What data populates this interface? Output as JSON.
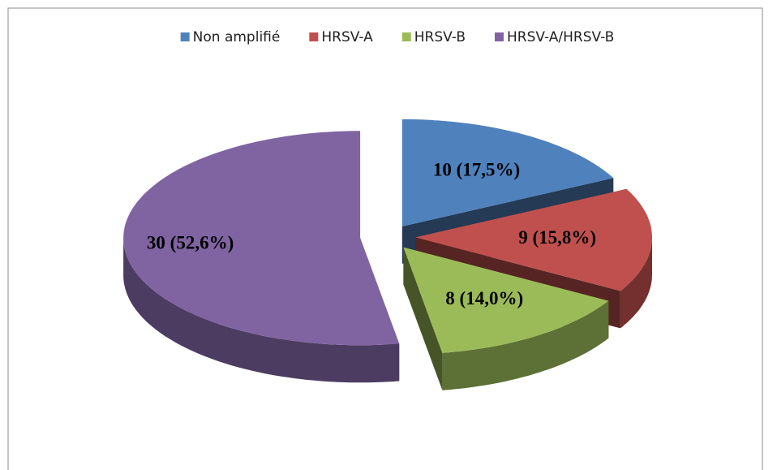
{
  "chart_data": {
    "type": "pie",
    "categories": [
      "Non amplifié",
      "HRSV-A",
      "HRSV-B",
      "HRSV-A/HRSV-B"
    ],
    "values": [
      10,
      9,
      8,
      30
    ],
    "value_labels": [
      "10 (17,5%)",
      "9 (15,8%)",
      "8 (14,0%)",
      "30 (52,6%)"
    ],
    "colors": [
      "#4f81bd",
      "#c0504d",
      "#9bbb59",
      "#8064a2"
    ],
    "legend": "top"
  }
}
